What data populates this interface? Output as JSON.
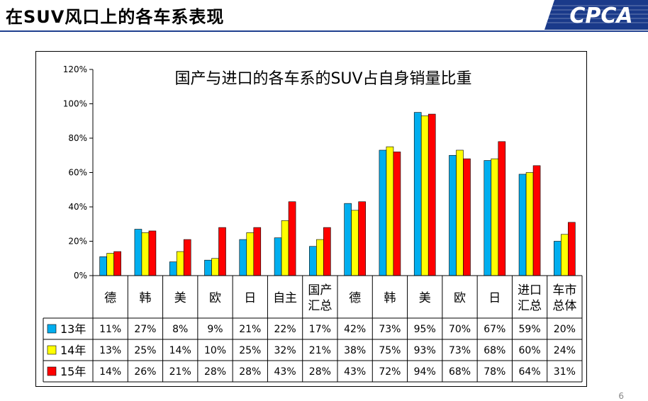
{
  "slide": {
    "title": "在SUV风口上的各车系表现",
    "logo_text": "CPCA",
    "page_number": "6"
  },
  "colors": {
    "s13": "#00AEEF",
    "s14": "#FFFF00",
    "s15": "#FF0000",
    "title_rule": "#1f3f8f"
  },
  "chart_data": {
    "type": "bar",
    "title": "国产与进口的各车系的SUV占自身销量比重",
    "categories": [
      [
        "德"
      ],
      [
        "韩"
      ],
      [
        "美"
      ],
      [
        "欧"
      ],
      [
        "日"
      ],
      [
        "自主"
      ],
      [
        "国产",
        "汇总"
      ],
      [
        "德"
      ],
      [
        "韩"
      ],
      [
        "美"
      ],
      [
        "欧"
      ],
      [
        "日"
      ],
      [
        "进口",
        "汇总"
      ],
      [
        "车市",
        "总体"
      ]
    ],
    "ylim": [
      0,
      120
    ],
    "yticks": [
      0,
      20,
      40,
      60,
      80,
      100,
      120
    ],
    "ytick_format": "{v}%",
    "series": [
      {
        "name": "13年",
        "color": "#00AEEF",
        "values": [
          11,
          27,
          8,
          9,
          21,
          22,
          17,
          42,
          73,
          95,
          70,
          67,
          59,
          20
        ]
      },
      {
        "name": "14年",
        "color": "#FFFF00",
        "values": [
          13,
          25,
          14,
          10,
          25,
          32,
          21,
          38,
          75,
          93,
          73,
          68,
          60,
          24
        ]
      },
      {
        "name": "15年",
        "color": "#FF0000",
        "values": [
          14,
          26,
          21,
          28,
          28,
          43,
          28,
          43,
          72,
          94,
          68,
          78,
          64,
          31
        ]
      }
    ],
    "table_values": [
      [
        "11%",
        "27%",
        "8%",
        "9%",
        "21%",
        "22%",
        "17%",
        "42%",
        "73%",
        "95%",
        "70%",
        "67%",
        "59%",
        "20%"
      ],
      [
        "13%",
        "25%",
        "14%",
        "10%",
        "25%",
        "32%",
        "21%",
        "38%",
        "75%",
        "93%",
        "73%",
        "68%",
        "60%",
        "24%"
      ],
      [
        "14%",
        "26%",
        "21%",
        "28%",
        "28%",
        "43%",
        "28%",
        "43%",
        "72%",
        "94%",
        "68%",
        "78%",
        "64%",
        "31%"
      ]
    ],
    "grid": false,
    "legend": "data-table"
  }
}
